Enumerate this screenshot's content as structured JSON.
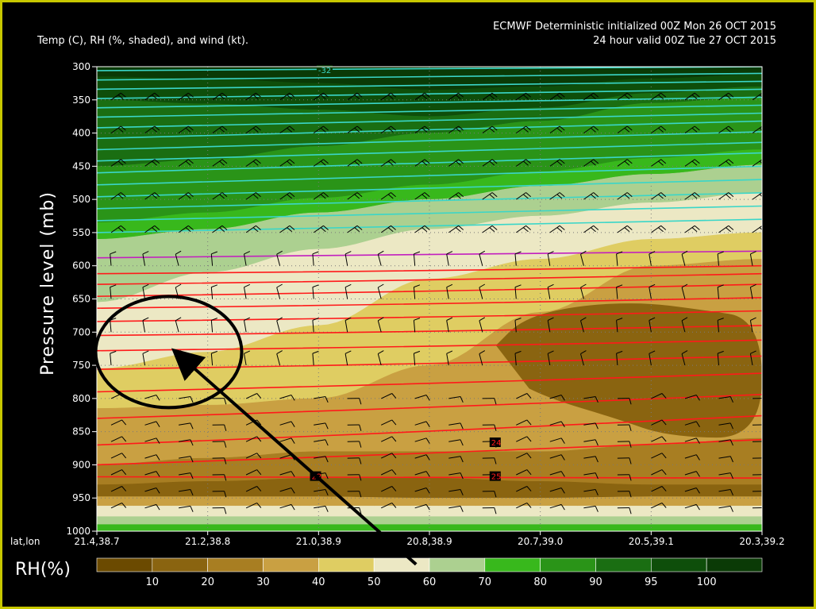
{
  "header": {
    "model_line": "ECMWF Deterministic initialized 00Z Mon 26 OCT 2015",
    "valid_line": "24 hour valid 00Z Tue 27 OCT 2015",
    "fields_line": "Temp (C), RH (%, shaded), and wind (kt)."
  },
  "colors": {
    "frame": "#c8c800",
    "temp_cold": "#3ad6c8",
    "temp_zero": "#c21fbf",
    "temp_warm": "#ff1a1a",
    "arrow": "#000000",
    "annotation_circle": "#000000"
  },
  "chart_data": {
    "type": "heatmap",
    "title": "Temp (C), RH (%, shaded), and wind (kt).",
    "ylabel": "Pressure level (mb)",
    "xlabel": "lat,lon",
    "y_axis": {
      "ticks": [
        300,
        350,
        400,
        450,
        500,
        550,
        600,
        650,
        700,
        750,
        800,
        850,
        900,
        950,
        1000
      ],
      "range": [
        300,
        1000
      ],
      "inverted": true
    },
    "x_axis": {
      "labels": [
        "21.4,38.7",
        "21.2,38.8",
        "21.0,38.9",
        "20.8,38.9",
        "20.7,39.0",
        "20.5,39.1",
        "20.3,39.2"
      ]
    },
    "grid": true,
    "colorbar": {
      "label": "RH(%)",
      "colors": [
        "#6b4a00",
        "#8a6410",
        "#a87e22",
        "#c9a042",
        "#dfcd62",
        "#ece8c4",
        "#acd090",
        "#38b81c",
        "#2a9418",
        "#1a6e12",
        "#0e4e0a",
        "#0a3a06"
      ],
      "tick_labels": [
        "10",
        "20",
        "30",
        "40",
        "50",
        "60",
        "70",
        "80",
        "90",
        "95",
        "100"
      ]
    },
    "rh_layers": [
      {
        "rh_class": 12,
        "top": [
          300,
          300,
          300,
          300,
          300,
          300,
          300
        ],
        "bottom": [
          315,
          318,
          325,
          335,
          330,
          318,
          312
        ]
      },
      {
        "rh_class": 11,
        "top": [
          315,
          318,
          325,
          335,
          330,
          318,
          312
        ],
        "bottom": [
          350,
          356,
          365,
          375,
          362,
          340,
          330
        ]
      },
      {
        "rh_class": 10,
        "top": [
          350,
          356,
          365,
          375,
          362,
          340,
          330
        ],
        "bottom": [
          450,
          440,
          420,
          400,
          382,
          355,
          345
        ]
      },
      {
        "rh_class": 9,
        "top": [
          450,
          440,
          420,
          400,
          382,
          355,
          345
        ],
        "bottom": [
          535,
          520,
          498,
          478,
          458,
          438,
          425
        ]
      },
      {
        "rh_class": 8,
        "top": [
          535,
          520,
          498,
          478,
          458,
          438,
          425
        ],
        "bottom": [
          560,
          545,
          520,
          500,
          480,
          462,
          448
        ]
      },
      {
        "rh_class": 7,
        "top": [
          560,
          545,
          520,
          500,
          480,
          462,
          448
        ],
        "bottom": [
          655,
          610,
          575,
          545,
          525,
          505,
          490
        ]
      },
      {
        "rh_class": 6,
        "top": [
          655,
          610,
          575,
          545,
          525,
          505,
          490
        ],
        "bottom": [
          755,
          730,
          690,
          620,
          590,
          560,
          550
        ]
      },
      {
        "rh_class": 5,
        "top": [
          755,
          730,
          690,
          620,
          590,
          560,
          550
        ],
        "bottom": [
          815,
          810,
          800,
          750,
          670,
          600,
          590
        ]
      },
      {
        "rh_class": 4,
        "top": [
          815,
          810,
          800,
          750,
          670,
          600,
          590
        ],
        "bottom": [
          900,
          890,
          880,
          880,
          880,
          870,
          860
        ]
      },
      {
        "rh_class": 3,
        "top": [
          900,
          890,
          880,
          880,
          880,
          870,
          860
        ],
        "bottom": [
          930,
          925,
          920,
          920,
          925,
          930,
          930
        ]
      },
      {
        "rh_class": 2,
        "top": [
          930,
          925,
          920,
          920,
          925,
          930,
          930
        ],
        "bottom": [
          948,
          948,
          948,
          950,
          950,
          948,
          948
        ]
      },
      {
        "rh_class": 4,
        "top": [
          948,
          948,
          948,
          950,
          950,
          948,
          948
        ],
        "bottom": [
          962,
          962,
          962,
          962,
          962,
          962,
          962
        ]
      },
      {
        "rh_class": 6,
        "top": [
          962,
          962,
          962,
          962,
          962,
          962,
          962
        ],
        "bottom": [
          978,
          978,
          978,
          978,
          978,
          978,
          978
        ]
      },
      {
        "rh_class": 7,
        "top": [
          978,
          978,
          978,
          978,
          978,
          978,
          978
        ],
        "bottom": [
          990,
          990,
          990,
          990,
          990,
          990,
          990
        ]
      },
      {
        "rh_class": 8,
        "top": [
          990,
          990,
          990,
          990,
          990,
          990,
          990
        ],
        "bottom": [
          1000,
          1000,
          1000,
          1000,
          1000,
          1000,
          1000
        ]
      }
    ],
    "rh_core_dry": {
      "rh_class": 2,
      "outline_pressure": [
        [
          0.6,
          720
        ],
        [
          0.64,
          680
        ],
        [
          0.72,
          660
        ],
        [
          0.82,
          655
        ],
        [
          0.9,
          665
        ],
        [
          1.0,
          680
        ],
        [
          1.0,
          860
        ],
        [
          0.86,
          858
        ],
        [
          0.78,
          830
        ],
        [
          0.68,
          800
        ],
        [
          0.62,
          770
        ]
      ]
    },
    "temperature_isotherms": {
      "levels": [
        -32,
        -30,
        -28,
        -26,
        -24,
        -22,
        -20,
        -18,
        -16,
        -14,
        -12,
        -10,
        -8,
        -6,
        -4,
        -2,
        0,
        2,
        4,
        6,
        8,
        10,
        12,
        14,
        16,
        18,
        20,
        22,
        24,
        26
      ],
      "left_pressure": [
        306,
        320,
        334,
        348,
        362,
        376,
        392,
        408,
        425,
        442,
        460,
        478,
        496,
        514,
        532,
        550,
        588,
        612,
        628,
        646,
        664,
        684,
        705,
        728,
        756,
        790,
        830,
        870,
        900,
        918
      ],
      "right_pressure": [
        300,
        310,
        322,
        334,
        346,
        358,
        370,
        382,
        398,
        414,
        430,
        450,
        470,
        490,
        510,
        530,
        578,
        600,
        612,
        628,
        648,
        668,
        690,
        712,
        736,
        762,
        794,
        826,
        862,
        920
      ]
    },
    "isotherm_labels": [
      {
        "text": "-32",
        "x_frac": 0.34,
        "pressure": 305
      },
      {
        "text": "24",
        "x_frac": 0.6,
        "pressure": 866
      },
      {
        "text": "22",
        "x_frac": 0.33,
        "pressure": 917
      },
      {
        "text": "25",
        "x_frac": 0.6,
        "pressure": 917
      }
    ],
    "wind_barb_pressures": [
      300,
      350,
      400,
      450,
      500,
      550,
      600,
      650,
      700,
      750,
      800,
      850,
      900,
      950
    ],
    "annotations": {
      "circle_center": {
        "x_frac": 0.108,
        "pressure": 730
      },
      "arrow_tail": {
        "x_frac": 0.48,
        "pressure": 1050
      },
      "arrow_head": {
        "x_frac": 0.13,
        "pressure": 740
      }
    }
  }
}
